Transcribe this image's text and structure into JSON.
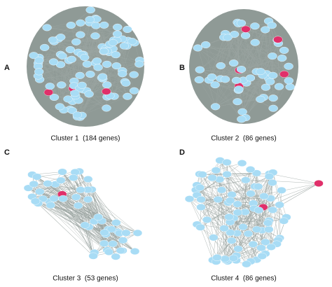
{
  "panels": [
    {
      "letter": "A",
      "caption": "Cluster 1  (184 genes)"
    },
    {
      "letter": "B",
      "caption": "Cluster 2  (86 genes)"
    },
    {
      "letter": "C",
      "caption": "Cluster 3  (53 genes)"
    },
    {
      "letter": "D",
      "caption": "Cluster 4  (86 genes)"
    }
  ]
}
